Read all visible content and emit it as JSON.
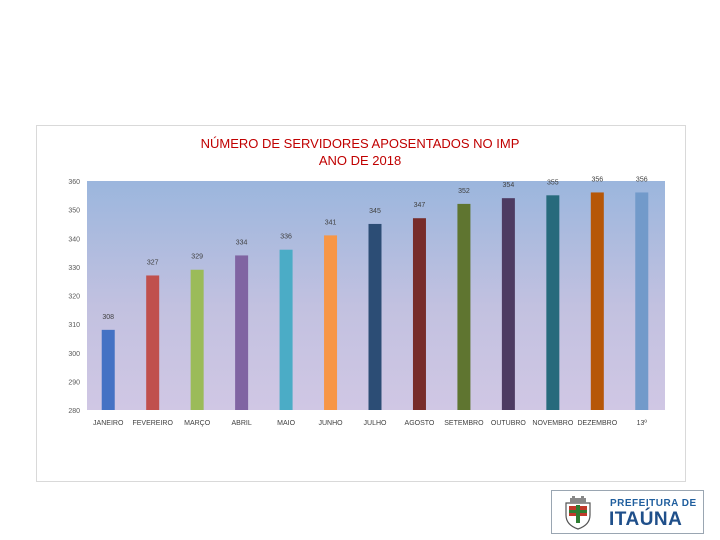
{
  "chart_data": {
    "type": "bar",
    "title_lines": [
      "NÚMERO DE SERVIDORES APOSENTADOS NO IMP",
      "ANO DE 2018"
    ],
    "categories": [
      "JANEIRO",
      "FEVEREIRO",
      "MARÇO",
      "ABRIL",
      "MAIO",
      "JUNHO",
      "JULHO",
      "AGOSTO",
      "SETEMBRO",
      "OUTUBRO",
      "NOVEMBRO",
      "DEZEMBRO",
      "13º"
    ],
    "values": [
      308,
      327,
      329,
      334,
      336,
      341,
      345,
      347,
      352,
      354,
      355,
      356,
      356
    ],
    "bar_colors": [
      "#4472c4",
      "#c0504d",
      "#9bbb59",
      "#8064a2",
      "#4bacc6",
      "#f79646",
      "#2c4d75",
      "#772c2a",
      "#5f7530",
      "#4d3b62",
      "#276a7c",
      "#b65708",
      "#729aca"
    ],
    "ylim": [
      280,
      360
    ],
    "yticks": [
      280,
      290,
      300,
      310,
      320,
      330,
      340,
      350,
      360
    ],
    "xlabel": "",
    "ylabel": "",
    "grid": false,
    "legend": "none",
    "background": "gradient blue-to-lavender"
  },
  "branding": {
    "line1": "PREFEITURA DE",
    "line2": "ITAÚNA"
  }
}
